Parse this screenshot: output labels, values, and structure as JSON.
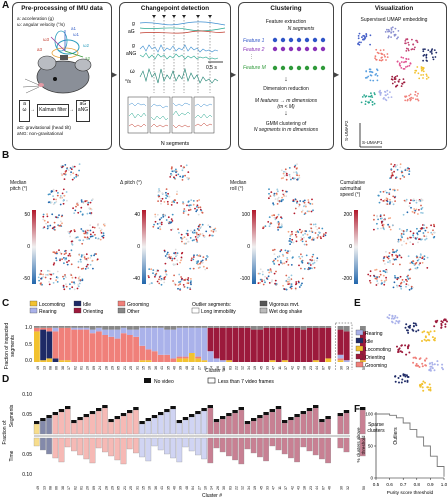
{
  "panels": {
    "A": {
      "label": "A",
      "preprocessing": {
        "title": "Pre-processing of IMU data",
        "legend_a": "a: acceleration (g)",
        "legend_w": "ω: angular velocity (°/s)",
        "filter": "Kalman filter",
        "in_a": "a",
        "in_w": "ω",
        "out_ag": "aG",
        "out_ang": "aNG",
        "note_g": "aG: gravitational (head tilt)",
        "note_ng": "aNG: non-gravitational",
        "axes": [
          "ω1",
          "ω2",
          "ω3",
          "a1",
          "a2",
          "a3"
        ]
      },
      "changepoint": {
        "title": "Changepoint detection",
        "labels": [
          "g",
          "aG",
          "g",
          "aNG",
          "ω",
          "°/s"
        ],
        "scale": "0.5 s",
        "bottom": "N segments"
      },
      "clustering": {
        "title": "Clustering",
        "feature_extraction": "Feature extraction",
        "n_segments": "N segments",
        "features": [
          "Feature 1",
          "Feature 2",
          "Feature M"
        ],
        "feature_colors": [
          "#2f55c8",
          "#8a33b8",
          "#2f9a3a"
        ],
        "dimred": "Dimension reduction",
        "mapping": "M features → m dimensions",
        "mapping_cond": "(m < M)",
        "gmm1": "GMM clustering of",
        "gmm2": "N segments in m dimensions"
      },
      "visualization": {
        "title": "Visualization",
        "subtitle": "Supervised UMAP embedding",
        "xlabel": "S-UMAP1",
        "ylabel": "S-UMAP2"
      }
    },
    "B": {
      "label": "B",
      "maps": [
        {
          "title1": "Median",
          "title2": "pitch (°)",
          "ticks": [
            "50",
            "0",
            "-50"
          ]
        },
        {
          "title1": "Δ pitch (°)",
          "title2": "",
          "ticks": [
            "40",
            "0",
            "-40"
          ]
        },
        {
          "title1": "Median",
          "title2": "roll (°)",
          "ticks": [
            "100",
            "0",
            "-100"
          ]
        },
        {
          "title1": "Cumulative",
          "title2": "azimuthal",
          "title3": "speed (°)",
          "ticks": [
            "200",
            "0",
            "-200"
          ]
        }
      ]
    },
    "C": {
      "label": "C",
      "legend": [
        {
          "name": "Locomoting",
          "color": "#f2c230"
        },
        {
          "name": "Idle",
          "color": "#1e2a66"
        },
        {
          "name": "Grooming",
          "color": "#f0807a"
        },
        {
          "name": "Rearing",
          "color": "#aab2ea"
        },
        {
          "name": "Orienting",
          "color": "#9c1a3c"
        },
        {
          "name": "Other",
          "color": "#888888"
        }
      ],
      "outlier_title": "Outlier segments:",
      "outlier_items": [
        {
          "name": "Vigorous mvt.",
          "color": "#555555"
        },
        {
          "name": "Long immobility",
          "color": "#ffffff"
        },
        {
          "name": "Wet dog shake",
          "color": "#bbbbbb"
        }
      ],
      "ylabel1": "Fraction of inspected",
      "ylabel2": "segments",
      "yticks": [
        "1.0",
        "0.5",
        "0.0"
      ],
      "xlabel": "Cluster #"
    },
    "D": {
      "label": "D",
      "legend": [
        "No video",
        "Less than 7 video frames"
      ],
      "ylabel_top1": "Fraction of:",
      "ylabel_top2": "Segments",
      "ylabel_bot": "Time",
      "yticks_top": [
        "0.10",
        "0.05"
      ],
      "yticks_bot": [
        "0.05",
        "0.10"
      ],
      "xlabel": "Cluster #",
      "sparse1": "Sparse",
      "sparse2": "clusters",
      "outliers": "Outliers"
    },
    "E": {
      "label": "E",
      "legend": [
        {
          "name": "Rearing",
          "color": "#aab2ea"
        },
        {
          "name": "Idle",
          "color": "#1e2a66"
        },
        {
          "name": "Locomoting",
          "color": "#f2c230"
        },
        {
          "name": "Orienting",
          "color": "#9c1a3c"
        },
        {
          "name": "Grooming",
          "color": "#f0807a"
        }
      ]
    },
    "F": {
      "label": "F",
      "ylabel1": "% clusters above",
      "ylabel2": "threshold",
      "xlabel": "Purity score threshold",
      "xticks": [
        "0.5",
        "0.6",
        "0.7",
        "0.8",
        "0.9",
        "1.0"
      ],
      "yticks": [
        "100",
        "50",
        "0"
      ]
    }
  },
  "chart_data": [
    {
      "type": "bar",
      "stacked": true,
      "title": "",
      "xlabel": "Cluster #",
      "ylabel": "Fraction of inspected segments",
      "ylim": [
        0,
        1
      ],
      "categories": [
        "49",
        "13",
        "08",
        "06",
        "38",
        "17",
        "02",
        "01",
        "20",
        "09",
        "24",
        "28",
        "29",
        "05",
        "21",
        "25",
        "31",
        "15",
        "16",
        "36",
        "41",
        "35",
        "40",
        "39",
        "48",
        "04",
        "27",
        "10",
        "14",
        "26",
        "30",
        "03",
        "22",
        "12",
        "34",
        "19",
        "45",
        "33",
        "47",
        "11",
        "37",
        "42",
        "43",
        "18",
        "23",
        "44",
        "07",
        "46",
        "30",
        "32",
        "50"
      ],
      "series": [
        {
          "name": "Locomoting",
          "color": "#f2c230",
          "values": [
            0.85,
            0.05,
            0.1,
            0,
            0.05,
            0.05,
            0,
            0,
            0,
            0,
            0,
            0,
            0,
            0,
            0,
            0,
            0,
            0.05,
            0.05,
            0,
            0,
            0,
            0,
            0.1,
            0.1,
            0.25,
            0.1,
            0.05,
            0,
            0,
            0,
            0.05,
            0,
            0,
            0,
            0,
            0,
            0,
            0.05,
            0,
            0.05,
            0,
            0,
            0,
            0,
            0.05,
            0,
            0.1,
            0.05,
            0,
            0.05
          ]
        },
        {
          "name": "Idle",
          "color": "#1e2a66",
          "values": [
            0,
            0.85,
            0.75,
            0.1,
            0,
            0,
            0,
            0,
            0,
            0,
            0,
            0,
            0,
            0,
            0,
            0,
            0,
            0,
            0,
            0,
            0,
            0,
            0,
            0,
            0,
            0,
            0,
            0,
            0,
            0,
            0,
            0,
            0,
            0,
            0,
            0,
            0,
            0,
            0,
            0,
            0,
            0,
            0,
            0,
            0,
            0,
            0,
            0,
            0,
            0,
            0
          ]
        },
        {
          "name": "Grooming",
          "color": "#f0807a",
          "values": [
            0.1,
            0.05,
            0.1,
            0.75,
            0.9,
            0.9,
            0.9,
            0.9,
            0.9,
            0.8,
            0.85,
            0.75,
            0.7,
            0.65,
            0.8,
            0.75,
            0.7,
            0.4,
            0.3,
            0.3,
            0.2,
            0.2,
            0.1,
            0.05,
            0.05,
            0,
            0.05,
            0,
            0,
            0,
            0,
            0,
            0,
            0,
            0,
            0,
            0,
            0,
            0,
            0,
            0,
            0,
            0,
            0,
            0,
            0,
            0,
            0,
            0.05,
            0,
            0
          ]
        },
        {
          "name": "Rearing",
          "color": "#aab2ea",
          "values": [
            0,
            0,
            0,
            0.1,
            0,
            0,
            0.05,
            0.05,
            0.05,
            0.1,
            0.1,
            0.15,
            0.2,
            0.25,
            0.15,
            0.15,
            0.2,
            0.5,
            0.6,
            0.65,
            0.75,
            0.7,
            0.8,
            0.8,
            0.8,
            0.7,
            0.8,
            0.9,
            0.3,
            0.1,
            0.05,
            0,
            0,
            0,
            0,
            0,
            0,
            0,
            0,
            0,
            0,
            0,
            0,
            0,
            0,
            0,
            0,
            0,
            0.1,
            0.05,
            0
          ]
        },
        {
          "name": "Orienting",
          "color": "#9c1a3c",
          "values": [
            0,
            0,
            0,
            0,
            0,
            0,
            0,
            0,
            0,
            0,
            0,
            0,
            0,
            0,
            0,
            0,
            0,
            0,
            0,
            0,
            0,
            0,
            0,
            0,
            0,
            0,
            0,
            0,
            0.65,
            0.85,
            0.9,
            0.9,
            0.95,
            0.95,
            0.95,
            0.9,
            0.9,
            0.95,
            0.9,
            0.95,
            0.9,
            0.95,
            0.95,
            0.9,
            0.95,
            0.9,
            0.95,
            0.85,
            0.7,
            0.8,
            0.8
          ]
        },
        {
          "name": "Other",
          "color": "#888888",
          "values": [
            0.05,
            0.05,
            0.05,
            0.05,
            0.05,
            0.05,
            0.05,
            0.05,
            0.05,
            0.1,
            0.05,
            0.1,
            0.1,
            0.1,
            0.05,
            0.1,
            0.1,
            0.05,
            0.05,
            0.05,
            0.05,
            0.1,
            0.1,
            0.05,
            0.05,
            0.05,
            0.05,
            0.05,
            0.05,
            0.05,
            0.05,
            0.05,
            0.05,
            0.05,
            0.05,
            0.1,
            0.1,
            0.05,
            0.05,
            0.05,
            0.05,
            0.05,
            0.05,
            0.1,
            0.05,
            0.05,
            0.05,
            0.05,
            0.1,
            0.15,
            0.15
          ]
        }
      ]
    },
    {
      "type": "line",
      "title": "",
      "xlabel": "Purity score threshold",
      "ylabel": "% clusters above threshold",
      "xlim": [
        0.5,
        1.0
      ],
      "ylim": [
        0,
        100
      ],
      "x": [
        0.5,
        0.55,
        0.6,
        0.65,
        0.7,
        0.75,
        0.8,
        0.85,
        0.9,
        0.95,
        1.0
      ],
      "y": [
        100,
        100,
        98,
        94,
        86,
        76,
        64,
        50,
        34,
        18,
        2
      ]
    }
  ]
}
